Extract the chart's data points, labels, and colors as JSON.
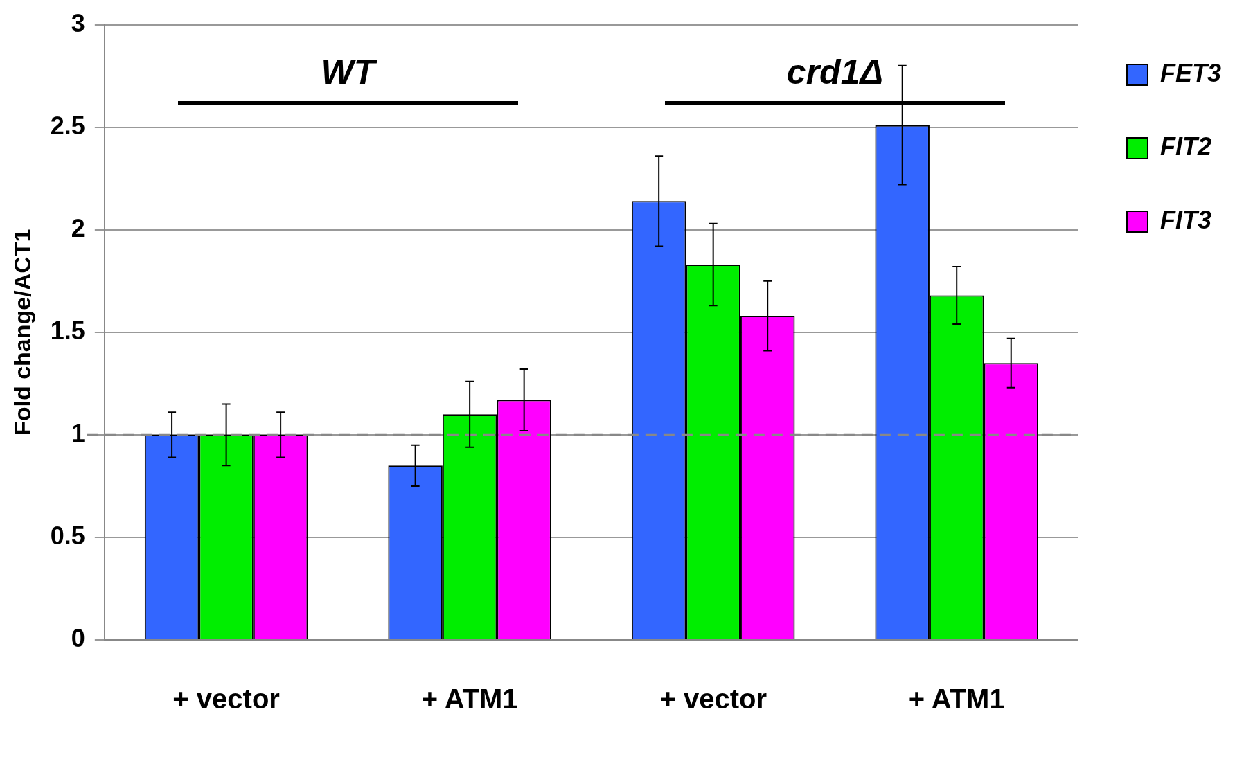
{
  "chart_data": {
    "type": "bar",
    "ylabel": "Fold change/ACT1",
    "categories": [
      "+ vector",
      "+ ATM1",
      "+ vector",
      "+ ATM1"
    ],
    "series": [
      {
        "name": "FET3",
        "color": "#3366ff",
        "values": [
          1,
          0.85,
          2.14,
          2.51
        ],
        "errors": [
          0.11,
          0.1,
          0.22,
          0.29
        ]
      },
      {
        "name": "FIT2",
        "color": "#00ee00",
        "values": [
          1,
          1.1,
          1.83,
          1.68
        ],
        "errors": [
          0.15,
          0.16,
          0.2,
          0.14
        ]
      },
      {
        "name": "FIT3",
        "color": "#ff00ff",
        "values": [
          1,
          1.17,
          1.58,
          1.35
        ],
        "errors": [
          0.11,
          0.15,
          0.17,
          0.12
        ]
      }
    ],
    "ylim": [
      0,
      3
    ],
    "yticks": [
      0,
      0.5,
      1,
      1.5,
      2,
      2.5,
      3
    ],
    "grid": "y",
    "legend": "top right",
    "ref_lines": [
      {
        "axis": "y",
        "value": 1,
        "color": "#888888",
        "line_style": "dashed"
      }
    ],
    "annotations": [
      "WT",
      "crd1Δ"
    ]
  }
}
